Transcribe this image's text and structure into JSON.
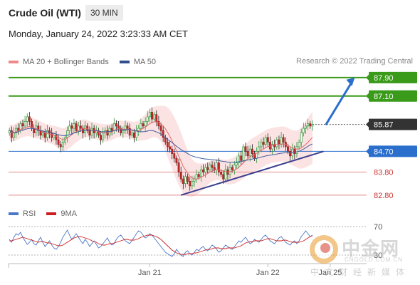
{
  "header": {
    "title": "Crude Oil (WTI)",
    "timeframe": "30 MIN",
    "datetime": "Monday, January 24, 2022 3:23:33 AM CET"
  },
  "legend": {
    "items": [
      {
        "label": "MA 20 + Bollinger Bands",
        "color": "#f08a8a"
      },
      {
        "label": "MA 50",
        "color": "#2f4f8f"
      }
    ],
    "credit": "Research © 2022 Trading Central"
  },
  "rsi_legend": {
    "items": [
      {
        "label": "RSI",
        "color": "#4a78c8"
      },
      {
        "label": "9MA",
        "color": "#cc1f1f"
      }
    ]
  },
  "watermark": {
    "text_cn": "中金网",
    "url": "CNGOLD.COM.CN",
    "sub": "中文财经新媒体"
  },
  "chart_data": {
    "type": "candlestick",
    "price_axis": {
      "ylim": [
        82.3,
        88.3
      ]
    },
    "levels": [
      {
        "label": "87.90",
        "value": 87.9,
        "style": "resistance",
        "color": "#3a9a1a"
      },
      {
        "label": "87.10",
        "value": 87.1,
        "style": "resistance",
        "color": "#3a9a1a"
      },
      {
        "label": "85.87",
        "value": 85.87,
        "style": "last",
        "color": "#333333"
      },
      {
        "label": "84.70",
        "value": 84.7,
        "style": "pivot",
        "color": "#2a6fcc"
      },
      {
        "label": "83.80",
        "value": 83.8,
        "style": "support",
        "color": "#e08a8a"
      },
      {
        "label": "82.80",
        "value": 82.8,
        "style": "support",
        "color": "#e08a8a"
      }
    ],
    "x_labels": [
      {
        "label": "Jan 21",
        "index": 63
      },
      {
        "label": "Jan 22",
        "index": 116
      },
      {
        "label": "Jan 25",
        "index": 144
      }
    ],
    "closes": [
      85.6,
      85.3,
      85.5,
      85.7,
      85.6,
      85.9,
      85.8,
      86.0,
      86.2,
      86.0,
      85.7,
      85.5,
      85.8,
      85.6,
      85.4,
      85.5,
      85.3,
      85.6,
      85.5,
      85.3,
      85.4,
      85.2,
      85.0,
      84.9,
      85.1,
      85.3,
      85.6,
      85.8,
      85.7,
      85.9,
      85.6,
      85.8,
      85.7,
      85.5,
      85.8,
      85.6,
      85.4,
      85.7,
      85.5,
      85.6,
      85.4,
      85.2,
      85.5,
      85.6,
      85.4,
      85.7,
      85.6,
      85.9,
      85.8,
      85.7,
      85.5,
      85.6,
      85.8,
      85.7,
      85.4,
      85.5,
      85.3,
      85.6,
      85.7,
      85.9,
      85.8,
      86.0,
      86.2,
      86.4,
      86.1,
      86.3,
      86.0,
      85.8,
      85.6,
      85.3,
      85.1,
      84.9,
      84.8,
      84.6,
      84.4,
      84.2,
      83.8,
      83.5,
      83.3,
      83.6,
      83.4,
      83.2,
      83.4,
      83.5,
      83.7,
      83.6,
      83.9,
      83.8,
      84.0,
      83.9,
      84.1,
      84.0,
      83.9,
      84.2,
      83.8,
      83.7,
      83.5,
      83.9,
      83.7,
      84.0,
      83.9,
      84.1,
      84.2,
      84.5,
      84.3,
      84.9,
      84.7,
      84.5,
      84.8,
      84.6,
      84.4,
      84.7,
      84.9,
      85.1,
      85.0,
      85.3,
      85.1,
      84.8,
      85.0,
      84.9,
      85.2,
      85.0,
      85.3,
      85.1,
      84.9,
      84.7,
      84.5,
      84.8,
      84.6,
      84.9,
      85.1,
      85.5,
      85.7,
      85.8,
      85.9,
      85.8,
      85.87
    ],
    "ma50": [
      85.6,
      85.55,
      85.5,
      85.52,
      85.55,
      85.6,
      85.62,
      85.65,
      85.68,
      85.7,
      85.7,
      85.68,
      85.65,
      85.62,
      85.6,
      85.58,
      85.55,
      85.55,
      85.53,
      85.5,
      85.48,
      85.45,
      85.42,
      85.4,
      85.38,
      85.38,
      85.4,
      85.42,
      85.45,
      85.5,
      85.52,
      85.55,
      85.58,
      85.6,
      85.62,
      85.63,
      85.62,
      85.62,
      85.6,
      85.6,
      85.58,
      85.55,
      85.55,
      85.55,
      85.55,
      85.56,
      85.57,
      85.6,
      85.62,
      85.63,
      85.63,
      85.63,
      85.64,
      85.65,
      85.64,
      85.63,
      85.6,
      85.58,
      85.56,
      85.55,
      85.55,
      85.56,
      85.58,
      85.6,
      85.6,
      85.58,
      85.54,
      85.5,
      85.45,
      85.38,
      85.3,
      85.22,
      85.15,
      85.08,
      85.0,
      84.92,
      84.85,
      84.78,
      84.72,
      84.66,
      84.6,
      84.55,
      84.5,
      84.47,
      84.44,
      84.42,
      84.4,
      84.38,
      84.37,
      84.36,
      84.35,
      84.34,
      84.33,
      84.32,
      84.3,
      84.28,
      84.26,
      84.25,
      84.23,
      84.22,
      84.22,
      84.22,
      84.23,
      84.25,
      84.26,
      84.28,
      84.3,
      84.32,
      84.35,
      84.37,
      84.38,
      84.4,
      84.42,
      84.45,
      84.47,
      84.5,
      84.52,
      84.53,
      84.55,
      84.56,
      84.58,
      84.6,
      84.62,
      84.63,
      84.64,
      84.64,
      84.64,
      84.65,
      84.66,
      84.68,
      84.7,
      84.75,
      84.8,
      84.86,
      84.92,
      84.98,
      85.02
    ],
    "ma20": [
      85.5,
      85.5,
      85.5,
      85.55,
      85.6,
      85.65,
      85.7,
      85.72,
      85.75,
      85.78,
      85.75,
      85.7,
      85.68,
      85.65,
      85.6,
      85.55,
      85.5,
      85.48,
      85.45,
      85.42,
      85.4,
      85.35,
      85.3,
      85.25,
      85.2,
      85.22,
      85.28,
      85.35,
      85.42,
      85.5,
      85.55,
      85.6,
      85.65,
      85.68,
      85.7,
      85.68,
      85.65,
      85.62,
      85.6,
      85.58,
      85.55,
      85.52,
      85.5,
      85.5,
      85.5,
      85.52,
      85.55,
      85.6,
      85.65,
      85.68,
      85.68,
      85.66,
      85.66,
      85.67,
      85.65,
      85.62,
      85.58,
      85.58,
      85.6,
      85.65,
      85.7,
      85.75,
      85.82,
      85.9,
      85.95,
      85.98,
      85.98,
      85.95,
      85.9,
      85.8,
      85.68,
      85.52,
      85.35,
      85.15,
      84.95,
      84.72,
      84.5,
      84.28,
      84.05,
      83.9,
      83.75,
      83.62,
      83.55,
      83.5,
      83.5,
      83.52,
      83.58,
      83.62,
      83.68,
      83.74,
      83.8,
      83.85,
      83.88,
      83.9,
      83.9,
      83.88,
      83.84,
      83.82,
      83.8,
      83.82,
      83.84,
      83.88,
      83.94,
      84.02,
      84.1,
      84.2,
      84.3,
      84.38,
      84.46,
      84.52,
      84.56,
      84.62,
      84.68,
      84.74,
      84.8,
      84.86,
      84.9,
      84.93,
      84.96,
      84.98,
      85.0,
      85.0,
      85.02,
      85.02,
      85.0,
      84.96,
      84.9,
      84.86,
      84.82,
      84.8,
      84.8,
      84.85,
      84.92,
      85.0,
      85.1,
      85.2,
      85.3
    ],
    "bb_width": [
      0.35,
      0.35,
      0.36,
      0.37,
      0.38,
      0.38,
      0.38,
      0.38,
      0.4,
      0.42,
      0.42,
      0.42,
      0.42,
      0.4,
      0.4,
      0.4,
      0.4,
      0.4,
      0.4,
      0.4,
      0.42,
      0.44,
      0.46,
      0.48,
      0.5,
      0.5,
      0.5,
      0.5,
      0.5,
      0.48,
      0.46,
      0.44,
      0.42,
      0.4,
      0.38,
      0.36,
      0.36,
      0.36,
      0.36,
      0.36,
      0.36,
      0.38,
      0.38,
      0.38,
      0.38,
      0.36,
      0.36,
      0.36,
      0.36,
      0.36,
      0.36,
      0.36,
      0.36,
      0.36,
      0.36,
      0.38,
      0.4,
      0.42,
      0.45,
      0.48,
      0.52,
      0.56,
      0.6,
      0.64,
      0.66,
      0.66,
      0.68,
      0.72,
      0.78,
      0.88,
      0.98,
      1.08,
      1.15,
      1.2,
      1.24,
      1.26,
      1.26,
      1.24,
      1.2,
      1.1,
      1.0,
      0.9,
      0.82,
      0.75,
      0.7,
      0.65,
      0.6,
      0.56,
      0.52,
      0.5,
      0.48,
      0.46,
      0.45,
      0.45,
      0.46,
      0.48,
      0.5,
      0.52,
      0.54,
      0.55,
      0.56,
      0.58,
      0.6,
      0.62,
      0.65,
      0.68,
      0.7,
      0.72,
      0.74,
      0.75,
      0.76,
      0.76,
      0.76,
      0.76,
      0.76,
      0.76,
      0.76,
      0.76,
      0.76,
      0.76,
      0.76,
      0.76,
      0.76,
      0.76,
      0.76,
      0.76,
      0.76,
      0.76,
      0.78,
      0.8,
      0.85,
      0.9,
      0.95,
      1.0,
      1.05,
      1.1,
      1.12
    ],
    "trendline": {
      "from": {
        "index": 77,
        "value": 82.8
      },
      "to": {
        "index": 141,
        "value": 84.7
      }
    },
    "forecast_arrow": {
      "from": {
        "index": 142,
        "value": 85.85
      },
      "to": {
        "index": 155,
        "value": 87.9
      }
    },
    "rsi": {
      "ylim": [
        20,
        80
      ],
      "level_labels": [
        {
          "label": "70",
          "value": 70
        },
        {
          "label": "30",
          "value": 30
        }
      ],
      "rsi_values": [
        52,
        48,
        55,
        60,
        58,
        62,
        55,
        50,
        45,
        48,
        52,
        46,
        44,
        50,
        55,
        48,
        42,
        46,
        50,
        44,
        40,
        38,
        42,
        48,
        55,
        60,
        65,
        58,
        52,
        56,
        60,
        55,
        50,
        46,
        52,
        48,
        42,
        46,
        50,
        45,
        40,
        42,
        46,
        50,
        54,
        48,
        44,
        46,
        52,
        56,
        58,
        54,
        50,
        48,
        46,
        50,
        55,
        60,
        64,
        62,
        58,
        54,
        56,
        60,
        58,
        54,
        50,
        46,
        42,
        38,
        34,
        32,
        30,
        28,
        32,
        38,
        34,
        30,
        28,
        34,
        36,
        32,
        30,
        34,
        38,
        36,
        40,
        42,
        38,
        36,
        40,
        44,
        42,
        38,
        34,
        36,
        40,
        44,
        42,
        40,
        38,
        42,
        46,
        50,
        48,
        52,
        55,
        50,
        46,
        48,
        52,
        50,
        48,
        52,
        56,
        58,
        54,
        50,
        48,
        46,
        50,
        54,
        56,
        52,
        48,
        46,
        44,
        48,
        50,
        46,
        50,
        56,
        60,
        64,
        60,
        56,
        58
      ],
      "ma9_values": [
        50,
        50,
        51,
        52,
        53,
        54,
        55,
        54,
        53,
        52,
        51,
        50,
        49,
        48,
        49,
        49,
        48,
        47,
        47,
        46,
        45,
        44,
        43,
        43,
        44,
        46,
        48,
        50,
        52,
        54,
        55,
        56,
        56,
        55,
        54,
        53,
        52,
        50,
        49,
        48,
        46,
        45,
        44,
        44,
        45,
        46,
        46,
        47,
        48,
        49,
        50,
        51,
        52,
        52,
        51,
        51,
        51,
        52,
        53,
        55,
        56,
        57,
        58,
        58,
        58,
        57,
        56,
        54,
        52,
        49,
        46,
        43,
        40,
        37,
        35,
        33,
        32,
        31,
        31,
        31,
        32,
        32,
        32,
        33,
        33,
        34,
        35,
        36,
        37,
        38,
        38,
        39,
        40,
        40,
        40,
        39,
        39,
        39,
        40,
        40,
        40,
        40,
        41,
        42,
        43,
        45,
        47,
        48,
        49,
        49,
        50,
        50,
        50,
        50,
        51,
        52,
        53,
        53,
        52,
        51,
        50,
        50,
        50,
        51,
        51,
        50,
        49,
        48,
        48,
        48,
        48,
        49,
        50,
        52,
        54,
        56,
        57
      ]
    }
  }
}
